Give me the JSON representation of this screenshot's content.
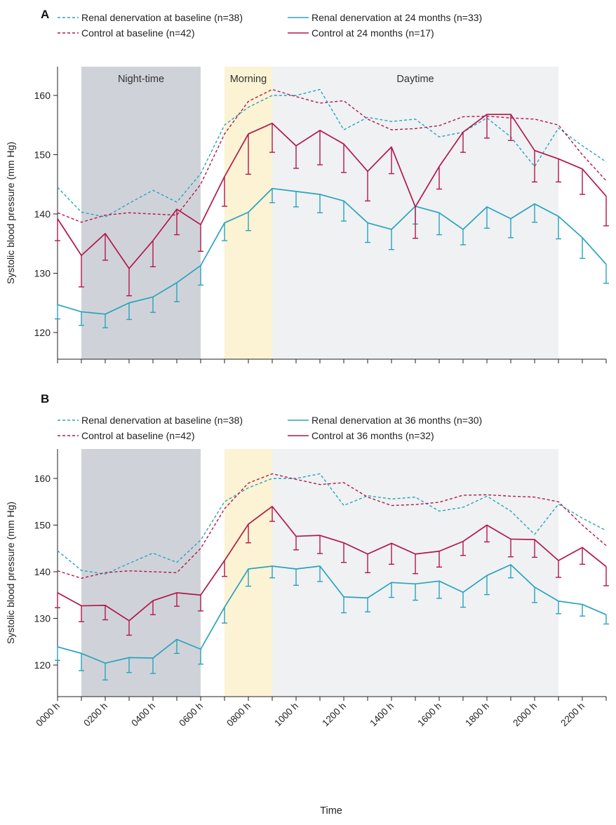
{
  "colors": {
    "renal": "#2aa3bd",
    "control": "#b3174a",
    "night_band": "#cfd3d9",
    "morning_band": "#fbf3d4",
    "day_band": "#eff1f3",
    "axis": "#222222"
  },
  "time_axis": {
    "label": "Time",
    "tick_labels": [
      "0000 h",
      "0200 h",
      "0400 h",
      "0600 h",
      "0800 h",
      "1000 h",
      "1200 h",
      "1400 h",
      "1600 h",
      "1800 h",
      "2000 h",
      "2200 h"
    ]
  },
  "chart_data": [
    {
      "type": "line",
      "panel_label": "A",
      "ylabel": "Systolic blood pressure (mm Hg)",
      "ylim": [
        115,
        165
      ],
      "yticks": [
        120,
        130,
        140,
        150,
        160
      ],
      "xlim": [
        0,
        23
      ],
      "x": [
        0,
        1,
        2,
        3,
        4,
        5,
        6,
        7,
        8,
        9,
        10,
        11,
        12,
        13,
        14,
        15,
        16,
        17,
        18,
        19,
        20,
        21,
        22,
        23
      ],
      "periods": [
        {
          "name": "Night-time",
          "start": 1,
          "end": 6,
          "kind": "night"
        },
        {
          "name": "Morning",
          "start": 7,
          "end": 9,
          "kind": "morning"
        },
        {
          "name": "Daytime",
          "start": 9,
          "end": 21,
          "kind": "day"
        }
      ],
      "legend": [
        {
          "label": "Renal denervation at baseline (n=38)",
          "color_key": "renal",
          "dashed": true
        },
        {
          "label": "Renal denervation at 24 months (n=33)",
          "color_key": "renal",
          "dashed": false
        },
        {
          "label": "Control at baseline (n=42)",
          "color_key": "control",
          "dashed": true
        },
        {
          "label": "Control at 24 months (n=17)",
          "color_key": "control",
          "dashed": false
        }
      ],
      "series": [
        {
          "name": "Renal denervation at baseline (n=38)",
          "color_key": "renal",
          "dashed": true,
          "values": [
            144.5,
            140.3,
            139.5,
            141.8,
            144,
            142,
            146.8,
            155,
            158,
            160,
            160,
            161,
            154.2,
            156.3,
            155.6,
            156,
            153,
            153.8,
            156.2,
            153,
            148,
            154.5,
            151.5,
            148.8
          ]
        },
        {
          "name": "Control at baseline (n=42)",
          "color_key": "control",
          "dashed": true,
          "values": [
            140.2,
            138.6,
            139.8,
            140.2,
            140,
            139.8,
            145,
            153.5,
            159,
            161,
            159.8,
            158.7,
            159.1,
            156,
            154.2,
            154.4,
            154.9,
            156.4,
            156.5,
            156.2,
            156,
            155,
            150,
            145.6
          ]
        },
        {
          "name": "Renal denervation at 24 months (n=33)",
          "color_key": "renal",
          "dashed": false,
          "values": [
            124.7,
            123.5,
            123.1,
            125,
            126,
            128.4,
            131.3,
            138.5,
            140.3,
            144.3,
            143.8,
            143.3,
            142.2,
            138.5,
            137.4,
            141.3,
            140.2,
            137.4,
            141.2,
            139.2,
            141.7,
            139.6,
            136,
            131.5
          ],
          "error_low": [
            122.3,
            121.2,
            120.8,
            122.2,
            123.4,
            125.2,
            128,
            135.5,
            137.2,
            141.9,
            141.2,
            140.2,
            138.8,
            135.2,
            134,
            138.3,
            136.5,
            134.8,
            137.6,
            136,
            138.6,
            135.8,
            132.5,
            128.3
          ]
        },
        {
          "name": "Control at 24 months (n=17)",
          "color_key": "control",
          "dashed": false,
          "values": [
            139.2,
            133,
            136.7,
            130.8,
            135.5,
            140.8,
            138.2,
            146.3,
            153.5,
            155.3,
            151.5,
            154.1,
            151.8,
            147.2,
            151.3,
            141.2,
            148,
            153.8,
            156.8,
            156.8,
            150.7,
            149.3,
            147.6,
            143
          ],
          "error_low": [
            135.5,
            127.7,
            132.2,
            126.2,
            131.1,
            136.5,
            133.7,
            141.3,
            146.7,
            150.4,
            147.7,
            148.3,
            147,
            142.2,
            146.8,
            135.9,
            144.2,
            150.4,
            152.8,
            152.4,
            145.4,
            145.4,
            143.3,
            138
          ]
        }
      ]
    },
    {
      "type": "line",
      "panel_label": "B",
      "ylabel": "Systolic blood pressure (mm Hg)",
      "ylim": [
        115,
        165
      ],
      "yticks": [
        120,
        130,
        140,
        150,
        160
      ],
      "xlim": [
        0,
        23
      ],
      "x": [
        0,
        1,
        2,
        3,
        4,
        5,
        6,
        7,
        8,
        9,
        10,
        11,
        12,
        13,
        14,
        15,
        16,
        17,
        18,
        19,
        20,
        21,
        22,
        23
      ],
      "periods": [
        {
          "name": "",
          "start": 1,
          "end": 6,
          "kind": "night"
        },
        {
          "name": "",
          "start": 7,
          "end": 9,
          "kind": "morning"
        },
        {
          "name": "",
          "start": 9,
          "end": 21,
          "kind": "day"
        }
      ],
      "legend": [
        {
          "label": "Renal denervation at baseline (n=38)",
          "color_key": "renal",
          "dashed": true
        },
        {
          "label": "Renal denervation at 36 months (n=30)",
          "color_key": "renal",
          "dashed": false
        },
        {
          "label": "Control at baseline (n=42)",
          "color_key": "control",
          "dashed": true
        },
        {
          "label": "Control at 36 months (n=32)",
          "color_key": "control",
          "dashed": false
        }
      ],
      "series": [
        {
          "name": "Renal denervation at baseline (n=38)",
          "color_key": "renal",
          "dashed": true,
          "values": [
            144.5,
            140.3,
            139.5,
            141.8,
            144,
            142,
            146.8,
            155,
            158,
            160,
            160,
            161,
            154.2,
            156.3,
            155.6,
            156,
            153,
            153.8,
            156.2,
            153,
            148,
            154.5,
            151.5,
            148.8
          ]
        },
        {
          "name": "Control at baseline (n=42)",
          "color_key": "control",
          "dashed": true,
          "values": [
            140.2,
            138.6,
            139.8,
            140.2,
            140,
            139.8,
            145,
            153.5,
            159,
            161,
            159.8,
            158.7,
            159.1,
            156,
            154.2,
            154.4,
            154.9,
            156.4,
            156.5,
            156.2,
            156,
            155,
            150,
            145.6
          ]
        },
        {
          "name": "Renal denervation at 36 months (n=30)",
          "color_key": "renal",
          "dashed": false,
          "values": [
            123.9,
            122.5,
            120.4,
            121.6,
            121.5,
            125.5,
            123.4,
            132.4,
            140.6,
            141.2,
            140.6,
            141.2,
            134.6,
            134.4,
            137.7,
            137.4,
            138,
            135.6,
            139.2,
            141.5,
            136.7,
            133.7,
            133,
            130.8
          ],
          "error_low": [
            121,
            118.8,
            116.8,
            118.4,
            118.2,
            122.5,
            120.2,
            129,
            136.9,
            138.7,
            137.1,
            137.9,
            131.2,
            131.4,
            134.5,
            133.9,
            134.3,
            132.4,
            135.1,
            138.7,
            133.4,
            131,
            130.5,
            128.8
          ]
        },
        {
          "name": "Control at 36 months (n=32)",
          "color_key": "control",
          "dashed": false,
          "values": [
            135.5,
            132.7,
            132.8,
            129.5,
            133.8,
            135.5,
            135,
            142.4,
            150.2,
            154,
            147.6,
            147.8,
            146.2,
            143.8,
            146.1,
            143.8,
            144.4,
            146.5,
            150,
            147,
            146.9,
            142.4,
            145.2,
            141.1
          ],
          "error_low": [
            132.3,
            129.3,
            129.7,
            126.4,
            130.8,
            132.6,
            131.6,
            139,
            146.2,
            150.8,
            144.7,
            143.9,
            142,
            139.8,
            141.6,
            139.6,
            141,
            143.5,
            146.4,
            143.2,
            143.1,
            138.8,
            141.6,
            137
          ]
        }
      ]
    }
  ]
}
